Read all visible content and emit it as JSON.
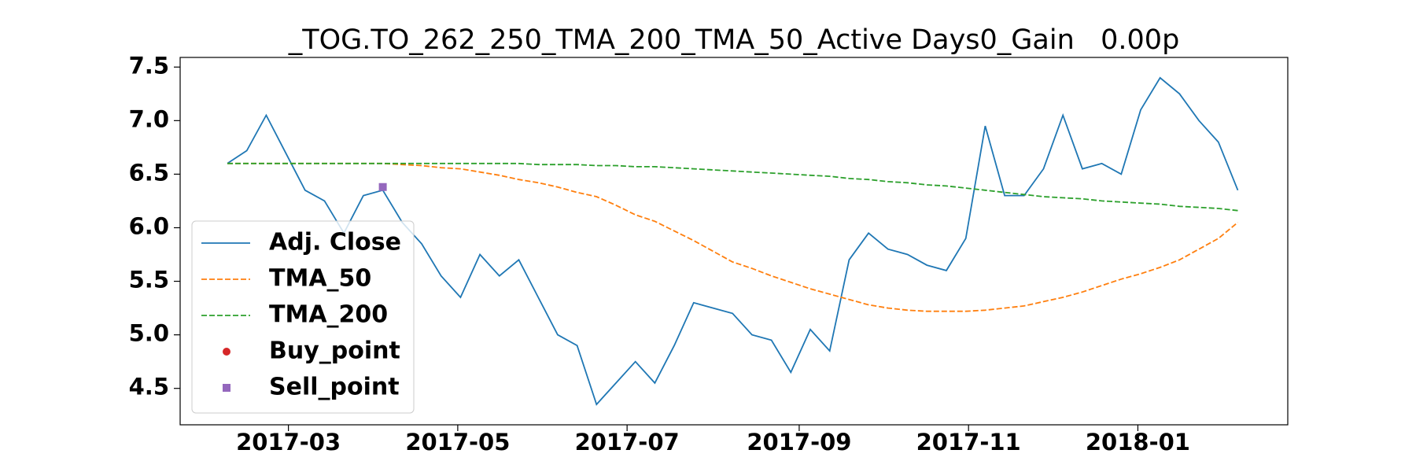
{
  "chart_data": {
    "type": "line",
    "title": "_TOG.TO_262_250_TMA_200_TMA_50_Active Days0_Gain   0.00p",
    "x": [
      17204,
      17211,
      17218,
      17225,
      17232,
      17239,
      17246,
      17253,
      17260,
      17267,
      17274,
      17281,
      17288,
      17295,
      17302,
      17309,
      17316,
      17323,
      17330,
      17337,
      17344,
      17351,
      17358,
      17365,
      17372,
      17379,
      17386,
      17393,
      17400,
      17407,
      17414,
      17421,
      17428,
      17435,
      17442,
      17449,
      17456,
      17463,
      17470,
      17477,
      17484,
      17491,
      17498,
      17505,
      17512,
      17519,
      17526,
      17533,
      17540,
      17547,
      17554,
      17561,
      17568
    ],
    "series": [
      {
        "name": "Adj. Close",
        "color": "#1f77b4",
        "linestyle": "solid",
        "values": [
          6.6,
          6.72,
          7.05,
          6.7,
          6.35,
          6.25,
          5.95,
          6.3,
          6.35,
          6.05,
          5.85,
          5.55,
          5.35,
          5.75,
          5.55,
          5.7,
          5.35,
          5.0,
          4.9,
          4.35,
          4.55,
          4.75,
          4.55,
          4.9,
          5.3,
          5.25,
          5.2,
          5.0,
          4.95,
          4.65,
          5.05,
          4.85,
          5.7,
          5.95,
          5.8,
          5.75,
          5.65,
          5.6,
          5.9,
          6.95,
          6.3,
          6.3,
          6.55,
          7.05,
          6.55,
          6.6,
          6.5,
          7.1,
          7.4,
          7.25,
          7.0,
          6.8,
          6.35
        ]
      },
      {
        "name": "TMA_50",
        "color": "#ff7f0e",
        "linestyle": "dashed",
        "values": [
          6.6,
          6.6,
          6.6,
          6.6,
          6.6,
          6.6,
          6.6,
          6.6,
          6.6,
          6.59,
          6.58,
          6.56,
          6.55,
          6.52,
          6.49,
          6.45,
          6.42,
          6.38,
          6.33,
          6.29,
          6.21,
          6.12,
          6.06,
          5.97,
          5.88,
          5.78,
          5.68,
          5.62,
          5.55,
          5.49,
          5.43,
          5.38,
          5.33,
          5.28,
          5.25,
          5.23,
          5.22,
          5.22,
          5.22,
          5.23,
          5.25,
          5.27,
          5.31,
          5.35,
          5.4,
          5.46,
          5.52,
          5.57,
          5.63,
          5.7,
          5.8,
          5.9,
          6.05
        ]
      },
      {
        "name": "TMA_200",
        "color": "#2ca02c",
        "linestyle": "dashed",
        "values": [
          6.6,
          6.6,
          6.6,
          6.6,
          6.6,
          6.6,
          6.6,
          6.6,
          6.6,
          6.6,
          6.6,
          6.6,
          6.6,
          6.6,
          6.6,
          6.6,
          6.59,
          6.59,
          6.59,
          6.58,
          6.58,
          6.57,
          6.57,
          6.56,
          6.55,
          6.54,
          6.53,
          6.52,
          6.51,
          6.5,
          6.49,
          6.48,
          6.46,
          6.45,
          6.43,
          6.42,
          6.4,
          6.39,
          6.37,
          6.35,
          6.33,
          6.31,
          6.29,
          6.28,
          6.27,
          6.25,
          6.24,
          6.23,
          6.22,
          6.2,
          6.19,
          6.18,
          6.16
        ]
      },
      {
        "name": "Buy_point",
        "color": "#d62728",
        "marker": "circle",
        "x": [],
        "values": []
      },
      {
        "name": "Sell_point",
        "color": "#9467bd",
        "marker": "square",
        "x": [
          17260
        ],
        "values": [
          6.38
        ]
      }
    ],
    "xlim": [
      17187,
      17586
    ],
    "xticks": [
      {
        "value": 17226,
        "label": "2017-03"
      },
      {
        "value": 17287,
        "label": "2017-05"
      },
      {
        "value": 17348,
        "label": "2017-07"
      },
      {
        "value": 17410,
        "label": "2017-09"
      },
      {
        "value": 17471,
        "label": "2017-11"
      },
      {
        "value": 17532,
        "label": "2018-01"
      }
    ],
    "ylim": [
      4.16,
      7.59
    ],
    "yticks": [
      4.5,
      {
        "value": 5,
        "label": "5.0"
      },
      5.5,
      {
        "value": 6,
        "label": "6.0"
      },
      6.5,
      {
        "value": 7,
        "label": "7.0"
      },
      7.5
    ],
    "legend": "lower left"
  }
}
